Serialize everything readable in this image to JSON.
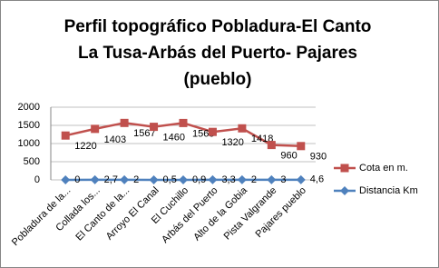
{
  "chart_data": {
    "type": "line",
    "title": [
      "Perfil topográfico Pobladura-El Canto",
      "La Tusa-Arbás del Puerto- Pajares",
      "(pueblo)"
    ],
    "categories": [
      "Pobladura de la...",
      "Collada los...",
      "El Canto de la...",
      "Arroyo El Canal",
      "El Cuchillo",
      "Arbás del Puerto",
      "Alto de la Gobia",
      "Pista Valgrande",
      "Pajares pueblo"
    ],
    "series": [
      {
        "name": "Cota en m.",
        "color": "#c0504d",
        "marker": "square",
        "values": [
          1220,
          1403,
          1567,
          1460,
          1565,
          1320,
          1418,
          960,
          930
        ]
      },
      {
        "name": "Distancia Km",
        "color": "#4f81bd",
        "marker": "diamond",
        "values": [
          0,
          2.7,
          2,
          0.5,
          0.9,
          3.3,
          2,
          3,
          4.6
        ],
        "value_labels": [
          "0",
          "2,7",
          "2",
          "0,5",
          "0,9",
          "3,3",
          "2",
          "3",
          "4,6"
        ]
      }
    ],
    "ylim": [
      0,
      2000
    ],
    "yticks": [
      0,
      500,
      1000,
      1500,
      2000
    ],
    "grid": true,
    "legend": "right"
  }
}
